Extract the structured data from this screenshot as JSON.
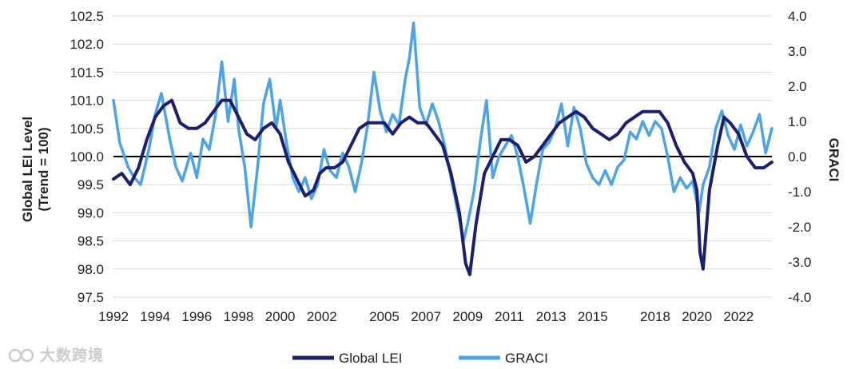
{
  "chart_data": {
    "type": "line",
    "y_left": {
      "label_line1": "Global LEI Level",
      "label_line2": "(Trend = 100)",
      "min": 97.5,
      "max": 102.5,
      "step": 0.5,
      "ticks": [
        "97.5",
        "98.0",
        "98.5",
        "99.0",
        "99.5",
        "100.0",
        "100.5",
        "101.0",
        "101.5",
        "102.0",
        "102.5"
      ]
    },
    "y_right": {
      "label": "GRACI",
      "min": -4.0,
      "max": 4.0,
      "step": 1.0,
      "ticks": [
        "-4.0",
        "-3.0",
        "-2.0",
        "-1.0",
        "0.0",
        "1.0",
        "2.0",
        "3.0",
        "4.0"
      ]
    },
    "x_axis": {
      "min": 1992.0,
      "max": 2023.6,
      "ticks": [
        1992,
        1994,
        1996,
        1998,
        2000,
        2002,
        2005,
        2007,
        2009,
        2011,
        2013,
        2015,
        2018,
        2020,
        2022
      ],
      "tick_labels": [
        "1992",
        "1994",
        "1996",
        "1998",
        "2000",
        "2002",
        "2005",
        "2007",
        "2009",
        "2011",
        "2013",
        "2015",
        "2018",
        "2020",
        "2022"
      ]
    },
    "reference_line": {
      "axis": "left",
      "value": 100.0
    },
    "grid": true,
    "legend_placement": "bottom-center",
    "series": [
      {
        "name": "Global LEI",
        "axis": "left",
        "color": "#1b1f6e",
        "x": [
          1992.0,
          1992.4,
          1992.8,
          1993.2,
          1993.6,
          1994.0,
          1994.4,
          1994.8,
          1995.2,
          1995.6,
          1996.0,
          1996.4,
          1996.8,
          1997.2,
          1997.6,
          1998.0,
          1998.4,
          1998.8,
          1999.2,
          1999.6,
          2000.0,
          2000.4,
          2000.8,
          2001.2,
          2001.6,
          2001.9,
          2002.2,
          2002.6,
          2003.0,
          2003.4,
          2003.8,
          2004.2,
          2004.6,
          2005.0,
          2005.4,
          2005.8,
          2006.2,
          2006.6,
          2007.0,
          2007.4,
          2007.8,
          2008.2,
          2008.6,
          2008.9,
          2009.1,
          2009.4,
          2009.8,
          2010.2,
          2010.6,
          2011.0,
          2011.4,
          2011.8,
          2012.2,
          2012.6,
          2013.0,
          2013.4,
          2013.8,
          2014.2,
          2014.6,
          2015.0,
          2015.4,
          2015.8,
          2016.2,
          2016.6,
          2017.0,
          2017.4,
          2017.8,
          2018.2,
          2018.6,
          2019.0,
          2019.4,
          2019.8,
          2020.0,
          2020.15,
          2020.3,
          2020.6,
          2021.0,
          2021.3,
          2021.6,
          2022.0,
          2022.4,
          2022.8,
          2023.2,
          2023.6
        ],
        "y": [
          99.6,
          99.7,
          99.5,
          99.8,
          100.3,
          100.7,
          100.9,
          101.0,
          100.6,
          100.5,
          100.5,
          100.6,
          100.8,
          101.0,
          101.0,
          100.7,
          100.4,
          100.3,
          100.5,
          100.6,
          100.4,
          99.9,
          99.6,
          99.3,
          99.4,
          99.7,
          99.8,
          99.8,
          99.9,
          100.2,
          100.5,
          100.6,
          100.6,
          100.6,
          100.4,
          100.6,
          100.7,
          100.6,
          100.6,
          100.4,
          100.2,
          99.7,
          99.0,
          98.1,
          97.9,
          98.8,
          99.7,
          100.0,
          100.3,
          100.3,
          100.2,
          99.9,
          100.0,
          100.2,
          100.4,
          100.6,
          100.7,
          100.8,
          100.7,
          100.5,
          100.4,
          100.3,
          100.4,
          100.6,
          100.7,
          100.8,
          100.8,
          100.8,
          100.6,
          100.2,
          99.9,
          99.7,
          99.4,
          98.3,
          98.0,
          99.4,
          100.2,
          100.7,
          100.6,
          100.4,
          100.0,
          99.8,
          99.8,
          99.9
        ]
      },
      {
        "name": "GRACI",
        "axis": "right",
        "color": "#4da3e8",
        "x": [
          1992.0,
          1992.3,
          1992.7,
          1993.0,
          1993.3,
          1993.7,
          1994.0,
          1994.3,
          1994.7,
          1995.0,
          1995.3,
          1995.7,
          1996.0,
          1996.3,
          1996.6,
          1996.9,
          1997.2,
          1997.5,
          1997.8,
          1998.0,
          1998.3,
          1998.6,
          1998.9,
          1999.2,
          1999.5,
          1999.8,
          2000.0,
          2000.3,
          2000.6,
          2000.9,
          2001.2,
          2001.5,
          2001.8,
          2002.1,
          2002.4,
          2002.7,
          2003.0,
          2003.3,
          2003.6,
          2003.9,
          2004.2,
          2004.5,
          2004.8,
          2005.1,
          2005.4,
          2005.7,
          2006.0,
          2006.2,
          2006.4,
          2006.7,
          2007.0,
          2007.3,
          2007.6,
          2007.9,
          2008.2,
          2008.5,
          2008.8,
          2009.0,
          2009.3,
          2009.6,
          2009.9,
          2010.2,
          2010.5,
          2010.8,
          2011.1,
          2011.4,
          2011.7,
          2012.0,
          2012.3,
          2012.6,
          2012.9,
          2013.2,
          2013.5,
          2013.8,
          2014.1,
          2014.4,
          2014.7,
          2015.0,
          2015.3,
          2015.6,
          2015.9,
          2016.2,
          2016.5,
          2016.8,
          2017.1,
          2017.4,
          2017.7,
          2018.0,
          2018.3,
          2018.6,
          2018.9,
          2019.2,
          2019.5,
          2019.8,
          2020.1,
          2020.3,
          2020.6,
          2020.9,
          2021.2,
          2021.5,
          2021.8,
          2022.1,
          2022.4,
          2022.7,
          2023.0,
          2023.3,
          2023.6
        ],
        "y": [
          1.6,
          0.4,
          -0.3,
          -0.6,
          -0.8,
          0.2,
          1.2,
          1.8,
          0.5,
          -0.3,
          -0.7,
          0.1,
          -0.6,
          0.5,
          0.2,
          1.2,
          2.7,
          1.0,
          2.2,
          0.8,
          -0.3,
          -2.0,
          -0.4,
          1.5,
          2.2,
          0.8,
          1.6,
          0.4,
          -0.6,
          -1.0,
          -0.6,
          -1.2,
          -0.8,
          0.2,
          -0.4,
          -0.6,
          0.1,
          -0.3,
          -1.0,
          -0.2,
          0.9,
          2.4,
          1.3,
          0.7,
          1.2,
          0.9,
          2.2,
          2.8,
          3.8,
          1.4,
          0.9,
          1.5,
          1.0,
          0.3,
          -0.6,
          -1.5,
          -2.4,
          -1.9,
          -1.0,
          0.4,
          1.6,
          -0.6,
          0.0,
          0.3,
          0.6,
          0.0,
          -0.9,
          -1.9,
          -0.8,
          0.2,
          0.4,
          0.8,
          1.5,
          0.3,
          1.4,
          0.8,
          -0.2,
          -0.6,
          -0.8,
          -0.4,
          -0.8,
          -0.3,
          -0.1,
          0.7,
          0.5,
          1.0,
          0.6,
          1.0,
          0.8,
          0.0,
          -1.0,
          -0.6,
          -0.9,
          -0.7,
          -1.6,
          -0.8,
          -0.3,
          0.8,
          1.3,
          0.6,
          0.2,
          0.9,
          0.3,
          0.7,
          1.2,
          0.1,
          0.8
        ]
      }
    ],
    "legend": [
      {
        "label": "Global LEI",
        "color": "#1b1f6e"
      },
      {
        "label": "GRACI",
        "color": "#4da3e8"
      }
    ]
  },
  "watermark": {
    "text": "大数跨境"
  }
}
